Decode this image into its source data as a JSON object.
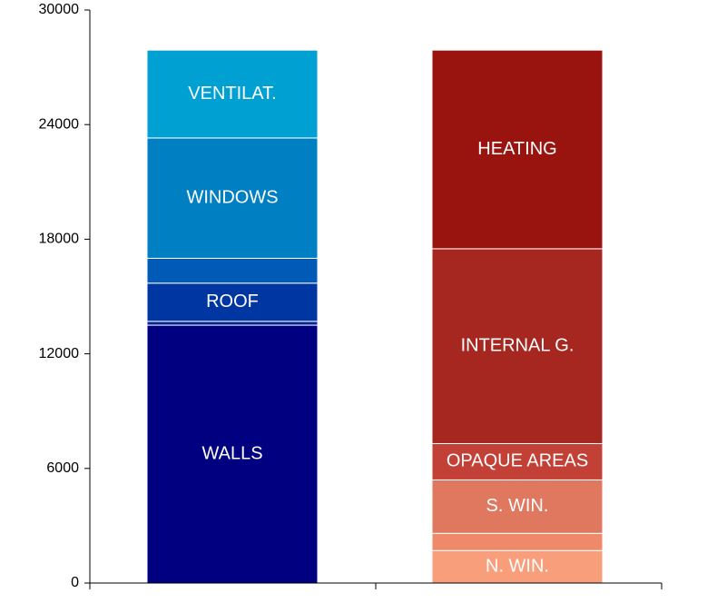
{
  "chart_data": {
    "type": "bar",
    "stacked": true,
    "categories": [
      "",
      ""
    ],
    "ylim": [
      0,
      30000
    ],
    "yticks": [
      0,
      6000,
      12000,
      18000,
      24000,
      30000
    ],
    "grid": false,
    "xlabel": "",
    "ylabel": "",
    "title": "",
    "stacks": [
      {
        "segments": [
          {
            "label": "WALLS",
            "value": 13500,
            "color": "#000080"
          },
          {
            "label": "",
            "value": 200,
            "color": "#0A2494"
          },
          {
            "label": "ROOF",
            "value": 2000,
            "color": "#0036A1"
          },
          {
            "label": "",
            "value": 1300,
            "color": "#005AB6"
          },
          {
            "label": "WINDOWS",
            "value": 6300,
            "color": "#007FC3"
          },
          {
            "label": "VENTILAT.",
            "value": 4600,
            "color": "#00A0D3"
          }
        ]
      },
      {
        "segments": [
          {
            "label": "N. WIN.",
            "value": 1700,
            "color": "#F99E7A"
          },
          {
            "label": "",
            "value": 900,
            "color": "#EE8A6A"
          },
          {
            "label": "S. WIN.",
            "value": 2800,
            "color": "#E07860"
          },
          {
            "label": "OPAQUE AREAS",
            "value": 1900,
            "color": "#C24035"
          },
          {
            "label": "INTERNAL G.",
            "value": 10200,
            "color": "#A52720"
          },
          {
            "label": "HEATING",
            "value": 10400,
            "color": "#99130F"
          }
        ]
      }
    ]
  }
}
